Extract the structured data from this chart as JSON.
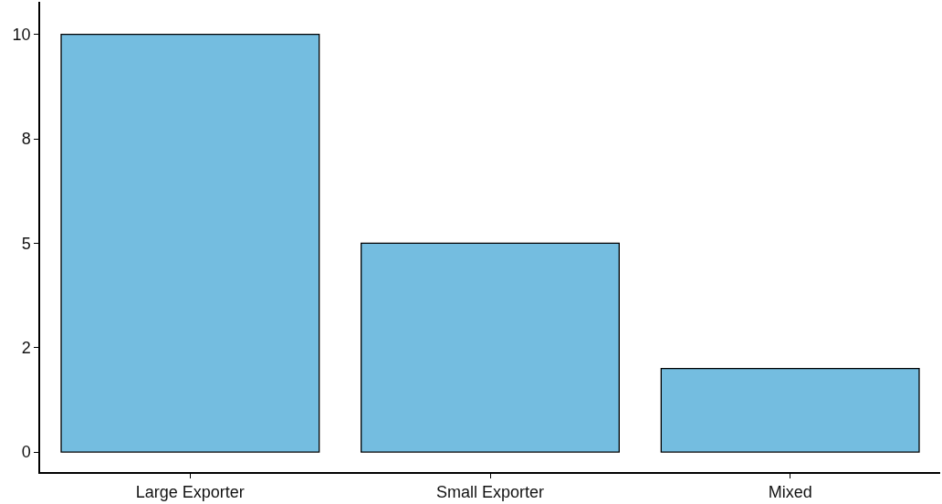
{
  "chart_data": {
    "type": "bar",
    "categories": [
      "Large Exporter",
      "Small Exporter",
      "Mixed"
    ],
    "values": [
      10,
      5,
      2
    ],
    "color": "#74bde0",
    "ylim": [
      -0.48,
      10.78
    ],
    "yticks": [
      0,
      {
        "value": 2.5,
        "label": "2"
      },
      5,
      {
        "value": 7.5,
        "label": "8"
      },
      10
    ],
    "grid": false,
    "legend": false
  }
}
